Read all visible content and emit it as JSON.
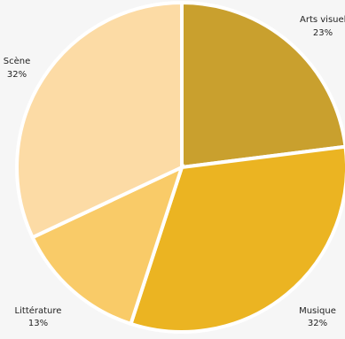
{
  "chart_data": {
    "type": "pie",
    "title": "",
    "start_angle_deg": 0,
    "direction": "clockwise",
    "slices": [
      {
        "label": "Arts visuels",
        "percent_label": "23%",
        "value": 23,
        "color": "#c9a02e"
      },
      {
        "label": "Musique",
        "percent_label": "32%",
        "value": 32,
        "color": "#ebb422"
      },
      {
        "label": "Littérature",
        "percent_label": "13%",
        "value": 13,
        "color": "#f9cb68"
      },
      {
        "label": "Scène",
        "percent_label": "32%",
        "value": 32,
        "color": "#fcdba5"
      }
    ]
  }
}
